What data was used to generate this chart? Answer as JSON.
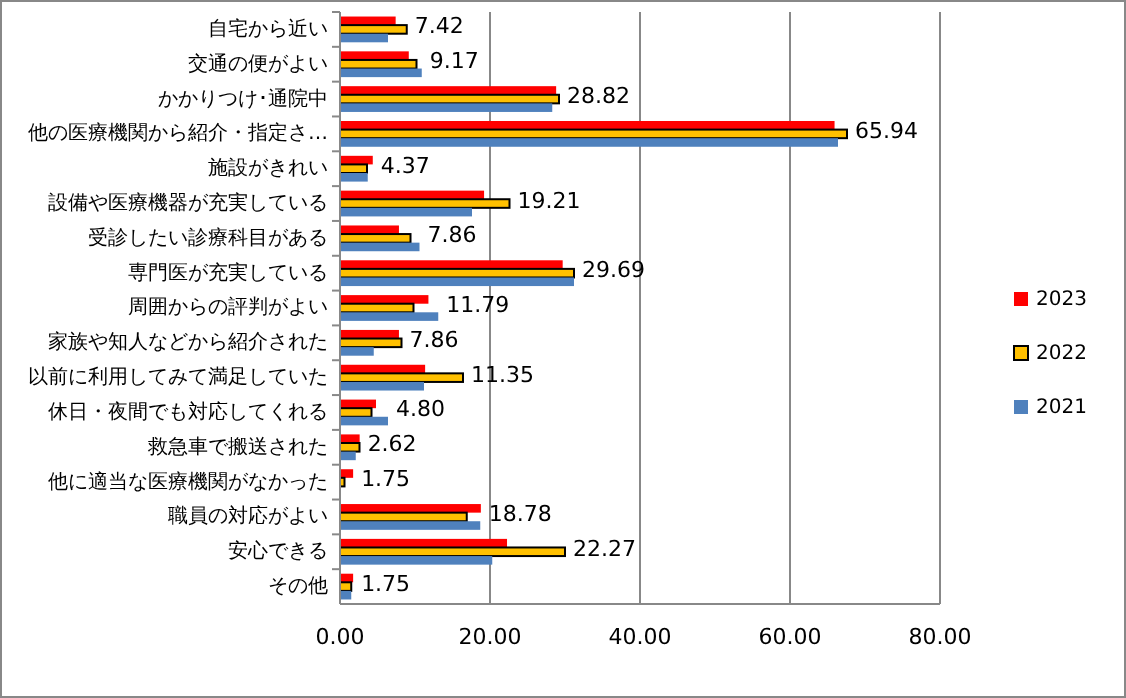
{
  "chart_data": {
    "type": "bar",
    "orientation": "horizontal",
    "categories": [
      "自宅から近い",
      "交通の便がよい",
      "かかりつけ･通院中",
      "他の医療機関から紹介・指定さ…",
      "施設がきれい",
      "設備や医療機器が充実している",
      "受診したい診療科目がある",
      "専門医が充実している",
      "周囲からの評判がよい",
      "家族や知人などから紹介された",
      "以前に利用してみて満足していた",
      "休日・夜間でも対応してくれる",
      "救急車で搬送された",
      "他に適当な医療機関がなかった",
      "職員の対応がよい",
      "安心できる",
      "その他"
    ],
    "series": [
      {
        "name": "2023",
        "color": "#ff0000",
        "values": [
          7.42,
          9.17,
          28.82,
          65.94,
          4.37,
          19.21,
          7.86,
          29.69,
          11.79,
          7.86,
          11.35,
          4.8,
          2.62,
          1.75,
          18.78,
          22.27,
          1.75
        ],
        "value_labels": [
          "7.42",
          "9.17",
          "28.82",
          "65.94",
          "4.37",
          "19.21",
          "7.86",
          "29.69",
          "11.79",
          "7.86",
          "11.35",
          "4.80",
          "2.62",
          "1.75",
          "18.78",
          "22.27",
          "1.75"
        ]
      },
      {
        "name": "2022",
        "color": "#ffc000",
        "values": [
          8.9,
          10.2,
          29.2,
          67.6,
          3.6,
          22.6,
          9.4,
          31.2,
          9.8,
          8.2,
          16.4,
          4.2,
          2.6,
          0.6,
          16.9,
          30.0,
          1.5
        ]
      },
      {
        "name": "2021",
        "color": "#4f81bd",
        "values": [
          6.4,
          10.9,
          28.3,
          66.4,
          3.7,
          17.6,
          10.6,
          31.2,
          13.1,
          4.5,
          11.2,
          6.4,
          2.1,
          0,
          18.7,
          20.3,
          1.5
        ]
      }
    ],
    "xlim": [
      0,
      80
    ],
    "xticks": [
      {
        "value": 0,
        "label": "0.00"
      },
      {
        "value": 20,
        "label": "20.00"
      },
      {
        "value": 40,
        "label": "40.00"
      },
      {
        "value": 60,
        "label": "60.00"
      },
      {
        "value": 80,
        "label": "80.00"
      }
    ],
    "grid": "x",
    "legend": "right"
  }
}
